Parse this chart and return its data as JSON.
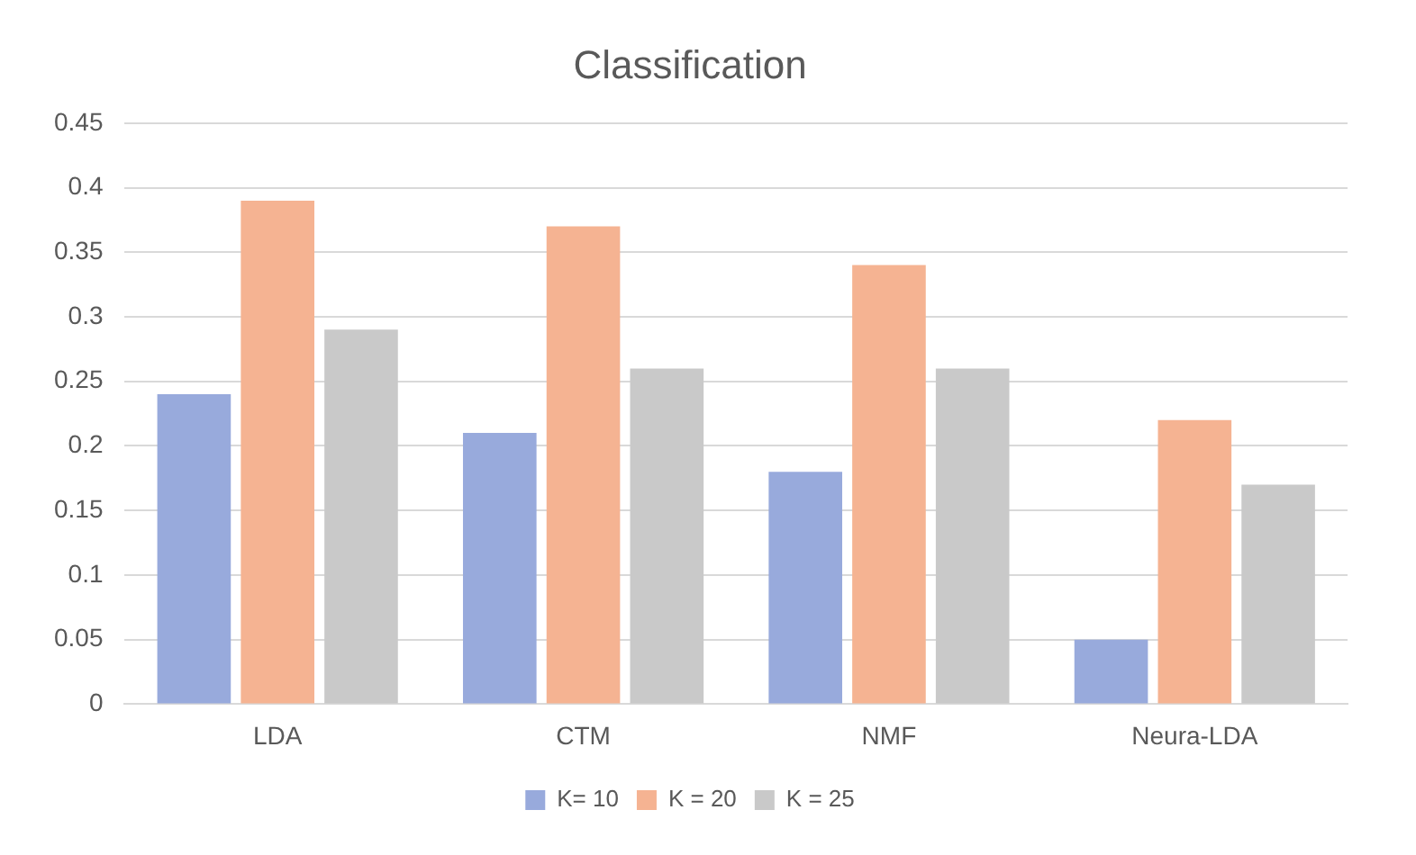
{
  "chart_data": {
    "type": "bar",
    "title": "Classification",
    "categories": [
      "LDA",
      "CTM",
      "NMF",
      "Neura-LDA"
    ],
    "series": [
      {
        "name": "K= 10",
        "color": "#98aadc",
        "values": [
          0.24,
          0.21,
          0.18,
          0.05
        ]
      },
      {
        "name": "K = 20",
        "color": "#f5b392",
        "values": [
          0.39,
          0.37,
          0.34,
          0.22
        ]
      },
      {
        "name": "K = 25",
        "color": "#c9c9c9",
        "values": [
          0.29,
          0.26,
          0.26,
          0.17
        ]
      }
    ],
    "ylim": [
      0,
      0.45
    ],
    "yticks": [
      0,
      0.05,
      0.1,
      0.15,
      0.2,
      0.25,
      0.3,
      0.35,
      0.4,
      0.45
    ],
    "grid": "y",
    "legend": "bottom"
  }
}
